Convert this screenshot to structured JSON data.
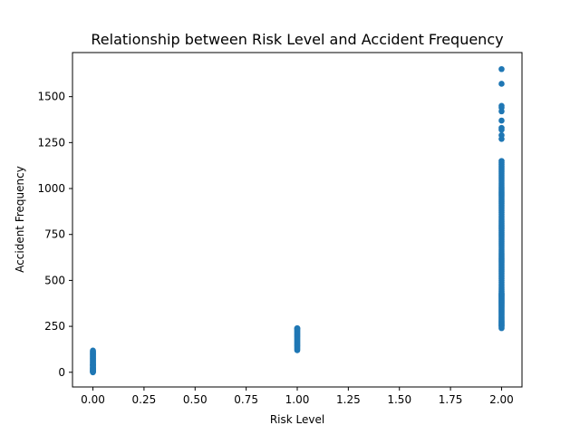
{
  "chart_data": {
    "type": "scatter",
    "title": "Relationship between Risk Level and Accident Frequency",
    "xlabel": "Risk Level",
    "ylabel": "Accident Frequency",
    "xlim": [
      -0.1,
      2.1
    ],
    "ylim": [
      -80,
      1740
    ],
    "grid": false,
    "legend": "none",
    "x_ticks": [
      0.0,
      0.25,
      0.5,
      0.75,
      1.0,
      1.25,
      1.5,
      1.75,
      2.0
    ],
    "x_tick_labels": [
      "0.00",
      "0.25",
      "0.50",
      "0.75",
      "1.00",
      "1.25",
      "1.50",
      "1.75",
      "2.00"
    ],
    "y_ticks": [
      0,
      250,
      500,
      750,
      1000,
      1250,
      1500
    ],
    "y_tick_labels": [
      "0",
      "250",
      "500",
      "750",
      "1000",
      "1250",
      "1500"
    ],
    "colors": {
      "marker": "#1f77b4",
      "axes": "#000000",
      "background": "#ffffff"
    },
    "series": [
      {
        "x": [
          0,
          0,
          0,
          0,
          0,
          0,
          0,
          0,
          0,
          0,
          0,
          0,
          0,
          0,
          0,
          0,
          0,
          0,
          0,
          0,
          0,
          0,
          0,
          0,
          0,
          0,
          0,
          0,
          0,
          0,
          0,
          0,
          0,
          0,
          0,
          0,
          1,
          1,
          1,
          1,
          1,
          1,
          1,
          1,
          1,
          1,
          1,
          1,
          1,
          1,
          1,
          1,
          1,
          1,
          1,
          1,
          1,
          1,
          1,
          1,
          1,
          1,
          2,
          2,
          2,
          2,
          2,
          2,
          2,
          2,
          2,
          2,
          2,
          2,
          2,
          2,
          2,
          2,
          2,
          2,
          2,
          2,
          2,
          2,
          2,
          2,
          2,
          2,
          2,
          2,
          2,
          2,
          2,
          2,
          2,
          2,
          2,
          2,
          2,
          2,
          2,
          2,
          2,
          2,
          2,
          2,
          2,
          2,
          2,
          2,
          2,
          2,
          2,
          2,
          2,
          2,
          2,
          2,
          2,
          2,
          2,
          2,
          2,
          2,
          2,
          2,
          2,
          2,
          2,
          2,
          2,
          2,
          2,
          2,
          2,
          2,
          2,
          2,
          2,
          2,
          2,
          2,
          2,
          2,
          2,
          2,
          2,
          2,
          2,
          2,
          2,
          2,
          2,
          2,
          2,
          2,
          2,
          2,
          2,
          2,
          2,
          2,
          2,
          2,
          2,
          2,
          2,
          2,
          2,
          2,
          2,
          2,
          2,
          2,
          2,
          2,
          2,
          2,
          2,
          2,
          2,
          2
        ],
        "y": [
          0,
          3,
          6,
          10,
          14,
          18,
          22,
          26,
          30,
          34,
          38,
          42,
          46,
          50,
          54,
          58,
          62,
          66,
          70,
          74,
          78,
          82,
          86,
          90,
          94,
          98,
          102,
          106,
          110,
          114,
          118,
          2,
          8,
          16,
          24,
          40,
          120,
          125,
          130,
          135,
          140,
          145,
          150,
          155,
          160,
          165,
          170,
          175,
          180,
          185,
          190,
          195,
          200,
          205,
          210,
          215,
          220,
          225,
          230,
          235,
          238,
          240,
          240,
          250,
          260,
          270,
          280,
          290,
          300,
          310,
          320,
          330,
          340,
          350,
          360,
          370,
          380,
          390,
          400,
          410,
          420,
          430,
          440,
          450,
          460,
          470,
          480,
          490,
          500,
          510,
          520,
          530,
          540,
          550,
          560,
          570,
          580,
          590,
          600,
          610,
          620,
          630,
          640,
          650,
          660,
          670,
          680,
          690,
          700,
          710,
          720,
          730,
          740,
          750,
          760,
          770,
          780,
          790,
          800,
          810,
          820,
          830,
          840,
          850,
          860,
          870,
          880,
          890,
          900,
          910,
          920,
          930,
          940,
          950,
          960,
          970,
          980,
          990,
          1000,
          1010,
          1020,
          1030,
          1040,
          1050,
          1060,
          1070,
          1080,
          1090,
          1100,
          1110,
          1120,
          1130,
          1140,
          1150,
          1270,
          1290,
          1320,
          1330,
          1370,
          1420,
          1440,
          1450,
          1570,
          1650,
          255,
          265,
          275,
          285,
          295,
          305,
          315,
          325,
          335,
          345,
          355,
          365,
          375,
          385,
          395,
          405,
          415,
          425
        ]
      }
    ]
  }
}
